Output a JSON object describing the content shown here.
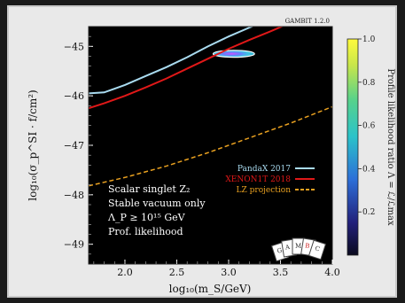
{
  "chart_data": {
    "type": "line",
    "tag": "GAMBIT 1.2.0",
    "xlabel": "log₁₀(m_S/GeV)",
    "ylabel": "log₁₀(σ_p^SI · f/cm²)",
    "xlim": [
      1.65,
      4.0
    ],
    "ylim": [
      -49.4,
      -44.6
    ],
    "x_ticks": [
      "2.0",
      "2.5",
      "3.0",
      "3.5",
      "4.0"
    ],
    "y_ticks": [
      "−45",
      "−46",
      "−47",
      "−48",
      "−49"
    ],
    "colorbar": {
      "label": "Profile likelihood ratio Λ = ℒ/ℒmax",
      "ticks": [
        "1.0",
        "0.8",
        "0.6",
        "0.4",
        "0.2"
      ],
      "range": [
        0,
        1
      ]
    },
    "annotations": [
      "Scalar singlet Z₂",
      "Stable vacuum only",
      "Λ_P ≥ 10¹⁵ GeV",
      "Prof. likelihood"
    ],
    "legend_position": "bottom-right",
    "series": [
      {
        "name": "PandaX 2017",
        "color": "#a9dbf0",
        "style": "solid",
        "x": [
          1.65,
          1.8,
          2.0,
          2.2,
          2.4,
          2.6,
          2.8,
          3.0,
          3.2,
          3.4,
          3.6,
          3.8
        ],
        "y": [
          -45.95,
          -45.93,
          -45.78,
          -45.6,
          -45.42,
          -45.22,
          -45.0,
          -44.8,
          -44.62,
          -44.45,
          -44.28,
          -44.11
        ]
      },
      {
        "name": "XENON1T 2018",
        "color": "#e01818",
        "style": "solid",
        "x": [
          1.65,
          1.8,
          2.0,
          2.2,
          2.4,
          2.6,
          2.8,
          3.0,
          3.2,
          3.4,
          3.6,
          3.8
        ],
        "y": [
          -46.25,
          -46.15,
          -46.0,
          -45.83,
          -45.65,
          -45.45,
          -45.25,
          -45.05,
          -44.87,
          -44.7,
          -44.52,
          -44.35
        ]
      },
      {
        "name": "LZ projection",
        "color": "#e8a020",
        "style": "dashed",
        "x": [
          1.65,
          2.0,
          2.4,
          2.8,
          3.2,
          3.6,
          4.0
        ],
        "y": [
          -47.82,
          -47.65,
          -47.42,
          -47.15,
          -46.85,
          -46.55,
          -46.22
        ]
      }
    ],
    "region": {
      "x_center": 3.05,
      "y_center": -45.15,
      "x_halfwidth": 0.2,
      "y_halfwidth": 0.07
    }
  }
}
